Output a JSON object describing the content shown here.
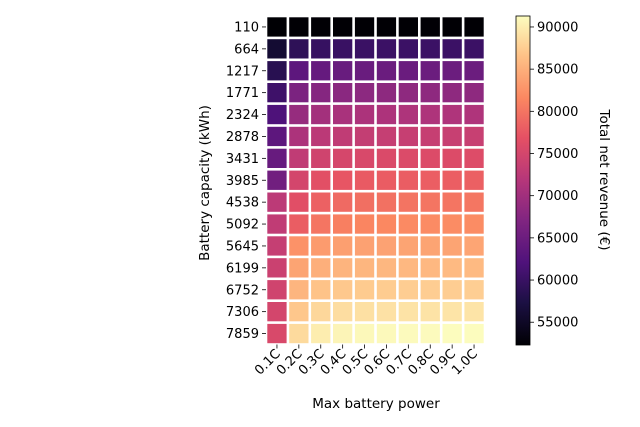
{
  "chart_data": {
    "type": "heatmap",
    "title": "",
    "xlabel": "Max battery power",
    "ylabel": "Battery capacity (kWh)",
    "x_categories": [
      "0.1C",
      "0.2C",
      "0.3C",
      "0.4C",
      "0.5C",
      "0.6C",
      "0.7C",
      "0.8C",
      "0.9C",
      "1.0C"
    ],
    "y_categories": [
      "110",
      "664",
      "1217",
      "1771",
      "2324",
      "2878",
      "3431",
      "3985",
      "4538",
      "5092",
      "5645",
      "6199",
      "6752",
      "7306",
      "7859"
    ],
    "values": [
      [
        52300,
        52400,
        52400,
        52400,
        52400,
        52400,
        52400,
        52400,
        52400,
        52400
      ],
      [
        56000,
        59000,
        59800,
        60000,
        60100,
        60200,
        60200,
        60200,
        60200,
        60200
      ],
      [
        58500,
        63500,
        64300,
        64600,
        64700,
        64800,
        64800,
        64900,
        64900,
        64900
      ],
      [
        60500,
        66500,
        67500,
        67900,
        68100,
        68200,
        68300,
        68300,
        68300,
        68300
      ],
      [
        62000,
        69000,
        70200,
        70700,
        71000,
        71100,
        71200,
        71200,
        71300,
        71300
      ],
      [
        63500,
        71000,
        72400,
        73000,
        73300,
        73500,
        73600,
        73600,
        73700,
        73700
      ],
      [
        64500,
        73000,
        74500,
        75200,
        75500,
        75700,
        75800,
        75900,
        75900,
        76000
      ],
      [
        65500,
        75000,
        76600,
        77300,
        77700,
        77900,
        78000,
        78100,
        78100,
        78200
      ],
      [
        72500,
        76500,
        78300,
        79100,
        79500,
        79700,
        79900,
        80000,
        80000,
        80100
      ],
      [
        73000,
        78000,
        80000,
        80900,
        81400,
        81600,
        81800,
        81900,
        82000,
        82000
      ],
      [
        73500,
        82500,
        83300,
        83600,
        83800,
        83900,
        84000,
        84000,
        84000,
        84100
      ],
      [
        74000,
        84000,
        85000,
        85400,
        85600,
        85700,
        85800,
        85800,
        85900,
        85900
      ],
      [
        74500,
        85500,
        86700,
        87100,
        87300,
        87400,
        87500,
        87500,
        87500,
        87600
      ],
      [
        75000,
        87000,
        88300,
        88800,
        89000,
        89100,
        89200,
        89200,
        89300,
        89300
      ],
      [
        75500,
        88500,
        90000,
        90600,
        90900,
        91000,
        91100,
        91100,
        91200,
        91200
      ]
    ],
    "colorbar": {
      "label": "Total net revenue (€)",
      "colormap": "magma",
      "range": [
        52300,
        91300
      ],
      "ticks": [
        "55000",
        "60000",
        "65000",
        "70000",
        "75000",
        "80000",
        "85000",
        "90000"
      ]
    }
  }
}
